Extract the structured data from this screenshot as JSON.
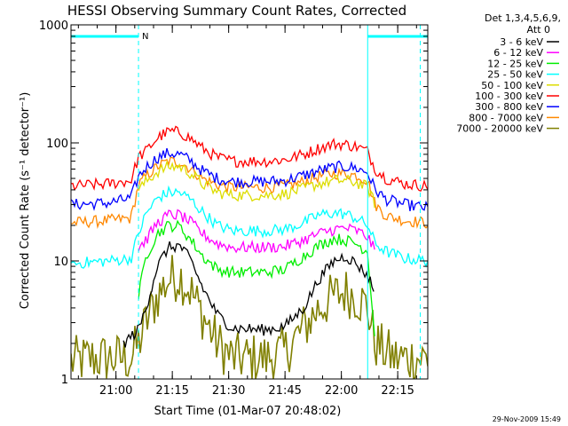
{
  "chart_data": {
    "type": "line",
    "title": "HESSI Observing Summary Count Rates, Corrected",
    "xlabel": "Start Time (01-Mar-07 20:48:02)",
    "ylabel": "Corrected Count Rate (s⁻¹ detector⁻¹)",
    "y_scale": "log",
    "ylim": [
      1,
      1000
    ],
    "y_ticks": [
      "1",
      "10",
      "100",
      "1000"
    ],
    "xlim": [
      "20:48:02",
      "22:23:00"
    ],
    "x_ticks": [
      "21:00",
      "21:15",
      "21:30",
      "21:45",
      "22:00",
      "22:15"
    ],
    "grid": false,
    "legend_position": "top-right",
    "legend_header": [
      "Det 1,3,4,5,6,9,",
      "Att 0"
    ],
    "timestamp": "29-Nov-2009 15:49",
    "markers": {
      "night_label": "N",
      "night_color": "#00ffff",
      "dashed_lines": [
        "21:06",
        "22:21"
      ],
      "solid_lines": [
        "22:07"
      ],
      "night_intervals": [
        [
          "20:48:02",
          "21:06"
        ],
        [
          "22:07",
          "22:23:00"
        ]
      ]
    },
    "series": [
      {
        "name": "3 - 6 keV",
        "color": "#000000",
        "data": [
          [
            "21:02",
            2
          ],
          [
            "21:06",
            2.6
          ],
          [
            "21:08",
            4
          ],
          [
            "21:11",
            9
          ],
          [
            "21:14",
            13
          ],
          [
            "21:17",
            13.5
          ],
          [
            "21:20",
            10
          ],
          [
            "21:23",
            6
          ],
          [
            "21:27",
            3.5
          ],
          [
            "21:31",
            2.7
          ],
          [
            "21:40",
            2.6
          ],
          [
            "21:45",
            2.8
          ],
          [
            "21:50",
            4
          ],
          [
            "21:54",
            7
          ],
          [
            "21:58",
            10
          ],
          [
            "22:01",
            11
          ],
          [
            "22:04",
            9.5
          ],
          [
            "22:07",
            7.5
          ],
          [
            "22:09",
            5.5
          ]
        ]
      },
      {
        "name": "6 - 12 keV",
        "color": "#ff00ff",
        "data": [
          [
            "21:06",
            13
          ],
          [
            "21:08",
            15
          ],
          [
            "21:11",
            21
          ],
          [
            "21:14",
            24.5
          ],
          [
            "21:17",
            24.5
          ],
          [
            "21:20",
            21
          ],
          [
            "21:23",
            17
          ],
          [
            "21:27",
            14
          ],
          [
            "21:31",
            13
          ],
          [
            "21:40",
            13
          ],
          [
            "21:45",
            13.3
          ],
          [
            "21:50",
            15
          ],
          [
            "21:54",
            17
          ],
          [
            "21:58",
            18.5
          ],
          [
            "22:01",
            19
          ],
          [
            "22:04",
            18
          ],
          [
            "22:07",
            16
          ],
          [
            "22:09",
            12
          ]
        ]
      },
      {
        "name": "12 - 25 keV",
        "color": "#00ee00",
        "data": [
          [
            "21:06",
            5
          ],
          [
            "21:08",
            11
          ],
          [
            "21:11",
            17
          ],
          [
            "21:14",
            20
          ],
          [
            "21:17",
            19.5
          ],
          [
            "21:20",
            15
          ],
          [
            "21:23",
            11
          ],
          [
            "21:27",
            8.5
          ],
          [
            "21:31",
            8
          ],
          [
            "21:40",
            8
          ],
          [
            "21:45",
            8.5
          ],
          [
            "21:50",
            11
          ],
          [
            "21:54",
            13.5
          ],
          [
            "21:58",
            15.5
          ],
          [
            "22:01",
            15
          ],
          [
            "22:04",
            14
          ],
          [
            "22:07",
            12
          ],
          [
            "22:09",
            2
          ]
        ]
      },
      {
        "name": "25 - 50 keV",
        "color": "#00ffff",
        "data": [
          [
            "20:48:02",
            9.5
          ],
          [
            "20:58",
            10
          ],
          [
            "21:04",
            10.5
          ],
          [
            "21:06",
            17
          ],
          [
            "21:08",
            25
          ],
          [
            "21:11",
            34
          ],
          [
            "21:14",
            38
          ],
          [
            "21:17",
            38
          ],
          [
            "21:20",
            33
          ],
          [
            "21:23",
            26
          ],
          [
            "21:27",
            20
          ],
          [
            "21:31",
            18
          ],
          [
            "21:40",
            18
          ],
          [
            "21:45",
            18.5
          ],
          [
            "21:50",
            21
          ],
          [
            "21:54",
            24.5
          ],
          [
            "21:58",
            25.5
          ],
          [
            "22:01",
            25
          ],
          [
            "22:04",
            23
          ],
          [
            "22:07",
            20
          ],
          [
            "22:09",
            14
          ],
          [
            "22:12",
            12
          ],
          [
            "22:17",
            10.5
          ],
          [
            "22:23:00",
            10
          ]
        ]
      },
      {
        "name": "50 - 100 keV",
        "color": "#dddd00",
        "data": [
          [
            "21:06",
            40
          ],
          [
            "21:08",
            47
          ],
          [
            "21:11",
            57
          ],
          [
            "21:14",
            63
          ],
          [
            "21:17",
            63
          ],
          [
            "21:20",
            55
          ],
          [
            "21:23",
            45
          ],
          [
            "21:27",
            38
          ],
          [
            "21:31",
            36
          ],
          [
            "21:40",
            36
          ],
          [
            "21:45",
            37
          ],
          [
            "21:50",
            41
          ],
          [
            "21:54",
            45
          ],
          [
            "21:58",
            48
          ],
          [
            "22:01",
            48
          ],
          [
            "22:04",
            46
          ],
          [
            "22:07",
            42
          ],
          [
            "22:09",
            30
          ]
        ]
      },
      {
        "name": "100 - 300 keV",
        "color": "#ff0000",
        "data": [
          [
            "20:48:02",
            43
          ],
          [
            "20:58",
            45
          ],
          [
            "21:04",
            48
          ],
          [
            "21:06",
            76
          ],
          [
            "21:08",
            85
          ],
          [
            "21:11",
            110
          ],
          [
            "21:14",
            125
          ],
          [
            "21:17",
            123
          ],
          [
            "21:20",
            108
          ],
          [
            "21:23",
            90
          ],
          [
            "21:27",
            75
          ],
          [
            "21:31",
            70
          ],
          [
            "21:40",
            70
          ],
          [
            "21:45",
            72
          ],
          [
            "21:50",
            80
          ],
          [
            "21:54",
            90
          ],
          [
            "21:58",
            98
          ],
          [
            "22:01",
            97
          ],
          [
            "22:04",
            93
          ],
          [
            "22:07",
            85
          ],
          [
            "22:09",
            60
          ],
          [
            "22:12",
            50
          ],
          [
            "22:17",
            45
          ],
          [
            "22:23:00",
            43
          ]
        ]
      },
      {
        "name": "300 - 800 keV",
        "color": "#0000ff",
        "data": [
          [
            "20:48:02",
            30
          ],
          [
            "20:58",
            31
          ],
          [
            "21:04",
            34
          ],
          [
            "21:06",
            52
          ],
          [
            "21:08",
            62
          ],
          [
            "21:11",
            75
          ],
          [
            "21:14",
            82
          ],
          [
            "21:17",
            80
          ],
          [
            "21:20",
            70
          ],
          [
            "21:23",
            58
          ],
          [
            "21:27",
            50
          ],
          [
            "21:31",
            47
          ],
          [
            "21:40",
            47
          ],
          [
            "21:45",
            48
          ],
          [
            "21:50",
            53
          ],
          [
            "21:54",
            58
          ],
          [
            "21:58",
            62
          ],
          [
            "22:01",
            63
          ],
          [
            "22:04",
            61
          ],
          [
            "22:07",
            56
          ],
          [
            "22:09",
            40
          ],
          [
            "22:12",
            33
          ],
          [
            "22:17",
            30
          ],
          [
            "22:23:00",
            28
          ]
        ]
      },
      {
        "name": "800 - 7000 keV",
        "color": "#ff8800",
        "data": [
          [
            "20:48:02",
            21
          ],
          [
            "20:58",
            22
          ],
          [
            "21:04",
            23
          ],
          [
            "21:06",
            44
          ],
          [
            "21:08",
            52
          ],
          [
            "21:11",
            63
          ],
          [
            "21:14",
            70
          ],
          [
            "21:17",
            69
          ],
          [
            "21:20",
            60
          ],
          [
            "21:23",
            50
          ],
          [
            "21:27",
            44
          ],
          [
            "21:31",
            42
          ],
          [
            "21:40",
            42
          ],
          [
            "21:45",
            43
          ],
          [
            "21:50",
            47
          ],
          [
            "21:54",
            52
          ],
          [
            "21:58",
            55
          ],
          [
            "22:01",
            55
          ],
          [
            "22:04",
            53
          ],
          [
            "22:07",
            48
          ],
          [
            "22:09",
            30
          ],
          [
            "22:12",
            24
          ],
          [
            "22:17",
            22
          ],
          [
            "22:23:00",
            21
          ]
        ]
      },
      {
        "name": "7000 - 20000 keV",
        "color": "#808000",
        "data": [
          [
            "20:48:02",
            1.4
          ],
          [
            "20:54",
            1.5
          ],
          [
            "21:00",
            1.5
          ],
          [
            "21:04",
            1.5
          ],
          [
            "21:06",
            2
          ],
          [
            "21:08",
            3
          ],
          [
            "21:11",
            5
          ],
          [
            "21:14",
            7
          ],
          [
            "21:17",
            7.5
          ],
          [
            "21:20",
            5.5
          ],
          [
            "21:23",
            3.5
          ],
          [
            "21:27",
            2
          ],
          [
            "21:31",
            1.5
          ],
          [
            "21:40",
            1.5
          ],
          [
            "21:45",
            1.7
          ],
          [
            "21:50",
            2.7
          ],
          [
            "21:54",
            4
          ],
          [
            "21:58",
            5
          ],
          [
            "22:01",
            5.5
          ],
          [
            "22:04",
            5
          ],
          [
            "22:07",
            4
          ],
          [
            "22:09",
            2
          ],
          [
            "22:14",
            1.5
          ],
          [
            "22:23:00",
            1.5
          ]
        ]
      }
    ]
  }
}
